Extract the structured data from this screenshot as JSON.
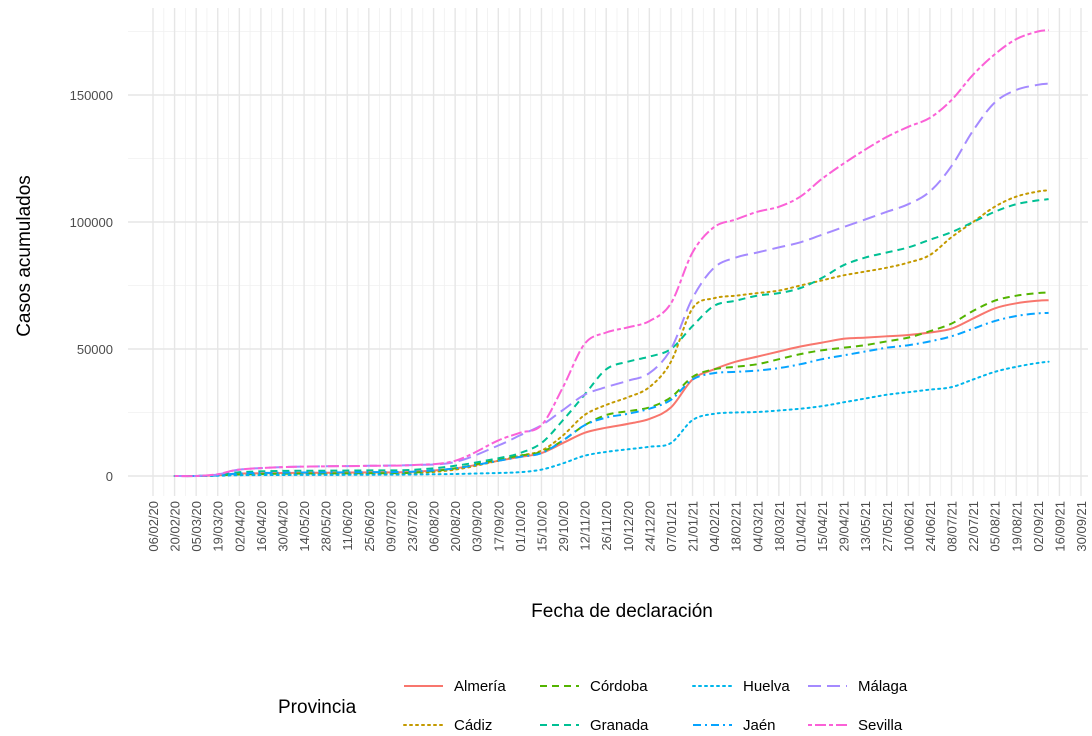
{
  "chart_data": {
    "type": "line",
    "title": "",
    "xlabel": "Fecha de declaración",
    "ylabel": "Casos acumulados",
    "ylim": [
      -5000,
      180000
    ],
    "yticks": [
      0,
      50000,
      100000,
      150000
    ],
    "ytick_labels": [
      "0",
      "50000",
      "100000",
      "150000"
    ],
    "xticks": [
      "06/02/20",
      "20/02/20",
      "05/03/20",
      "19/03/20",
      "02/04/20",
      "16/04/20",
      "30/04/20",
      "14/05/20",
      "28/05/20",
      "11/06/20",
      "25/06/20",
      "09/07/20",
      "23/07/20",
      "06/08/20",
      "20/08/20",
      "03/09/20",
      "17/09/20",
      "01/10/20",
      "15/10/20",
      "29/10/20",
      "12/11/20",
      "26/11/20",
      "10/12/20",
      "24/12/20",
      "07/01/21",
      "21/01/21",
      "04/02/21",
      "18/02/21",
      "04/03/21",
      "18/03/21",
      "01/04/21",
      "15/04/21",
      "29/04/21",
      "13/05/21",
      "27/05/21",
      "10/06/21",
      "24/06/21",
      "08/07/21",
      "22/07/21",
      "05/08/21",
      "19/08/21",
      "02/09/21",
      "16/09/21",
      "30/09/21"
    ],
    "grid": true,
    "legend": {
      "title": "Provincia",
      "placement": "bottom"
    },
    "x_dates": [
      "20/02/20",
      "05/03/20",
      "19/03/20",
      "02/04/20",
      "30/04/20",
      "28/05/20",
      "25/06/20",
      "23/07/20",
      "20/08/20",
      "17/09/20",
      "01/10/20",
      "15/10/20",
      "29/10/20",
      "12/11/20",
      "26/11/20",
      "10/12/20",
      "24/12/20",
      "07/01/21",
      "21/01/21",
      "04/02/21",
      "18/02/21",
      "04/03/21",
      "18/03/21",
      "01/04/21",
      "15/04/21",
      "29/04/21",
      "13/05/21",
      "27/05/21",
      "10/06/21",
      "24/06/21",
      "08/07/21",
      "22/07/21",
      "05/08/21",
      "19/08/21",
      "02/09/21",
      "09/09/21"
    ],
    "series": [
      {
        "name": "Almería",
        "color": "#F8766D",
        "dash": "solid",
        "values": [
          0,
          0,
          300,
          900,
          1200,
          1300,
          1400,
          1600,
          3000,
          6000,
          7500,
          9000,
          13000,
          17000,
          19000,
          20500,
          22500,
          27000,
          38000,
          42000,
          45000,
          47000,
          49000,
          51000,
          52500,
          54000,
          54500,
          55000,
          55500,
          56500,
          58000,
          62000,
          66000,
          68000,
          69000,
          69200
        ]
      },
      {
        "name": "Cádiz",
        "color": "#C49A00",
        "dash": "dotted",
        "values": [
          0,
          0,
          200,
          500,
          700,
          800,
          900,
          1100,
          2500,
          6000,
          8000,
          10000,
          16000,
          24000,
          28000,
          31000,
          35000,
          45000,
          66000,
          70000,
          71000,
          72000,
          73000,
          75000,
          77000,
          79000,
          80500,
          82000,
          84000,
          87000,
          94000,
          100000,
          106000,
          110000,
          112000,
          112500
        ]
      },
      {
        "name": "Córdoba",
        "color": "#53B400",
        "dash": "dashed",
        "values": [
          0,
          0,
          200,
          600,
          900,
          1000,
          1100,
          1300,
          3000,
          6500,
          8000,
          9500,
          14000,
          20000,
          24000,
          25500,
          27000,
          31000,
          39000,
          42000,
          43000,
          44000,
          46000,
          48000,
          49500,
          50500,
          51500,
          53000,
          54500,
          57000,
          60000,
          65000,
          69000,
          71000,
          72000,
          72200
        ]
      },
      {
        "name": "Granada",
        "color": "#00C094",
        "dash": "dashed",
        "values": [
          0,
          0,
          400,
          1500,
          2000,
          2100,
          2200,
          2400,
          4000,
          7000,
          9000,
          13000,
          22000,
          32000,
          42000,
          45000,
          47000,
          50000,
          59000,
          67000,
          69000,
          71000,
          72000,
          74000,
          78000,
          83000,
          86000,
          88000,
          90000,
          93000,
          96000,
          100000,
          104000,
          107000,
          108500,
          109000
        ]
      },
      {
        "name": "Huelva",
        "color": "#00B6EB",
        "dash": "dotted",
        "values": [
          0,
          0,
          100,
          300,
          400,
          450,
          500,
          600,
          800,
          1200,
          1500,
          2500,
          5000,
          8000,
          9500,
          10500,
          11500,
          13000,
          22000,
          24500,
          25000,
          25200,
          25800,
          26500,
          27500,
          29000,
          30500,
          32000,
          33000,
          34000,
          35000,
          38000,
          41000,
          43000,
          44500,
          45000
        ]
      },
      {
        "name": "Jaén",
        "color": "#06A4FF",
        "dash": "dashdot",
        "values": [
          0,
          0,
          300,
          1000,
          1300,
          1400,
          1500,
          1700,
          3000,
          6000,
          7500,
          9000,
          14000,
          20000,
          23000,
          24500,
          26500,
          30000,
          38000,
          40500,
          41000,
          41500,
          42500,
          44000,
          46000,
          47500,
          49000,
          50500,
          51500,
          53000,
          55000,
          58000,
          61000,
          63000,
          64000,
          64200
        ]
      },
      {
        "name": "Málaga",
        "color": "#A58AFF",
        "dash": "longdash",
        "values": [
          0,
          0,
          600,
          2500,
          3500,
          3800,
          4000,
          4300,
          5500,
          12000,
          16000,
          20000,
          26000,
          32000,
          35000,
          37500,
          40500,
          50000,
          70000,
          82000,
          86000,
          88000,
          90000,
          92000,
          95000,
          98000,
          101000,
          104000,
          107000,
          112000,
          122000,
          136000,
          147000,
          152000,
          154000,
          154500
        ]
      },
      {
        "name": "Sevilla",
        "color": "#FB61D7",
        "dash": "twodash",
        "values": [
          0,
          0,
          700,
          2500,
          3500,
          3800,
          4000,
          4300,
          6000,
          14000,
          17000,
          20000,
          35000,
          52000,
          56500,
          58500,
          61000,
          68000,
          88000,
          98000,
          101000,
          104000,
          106000,
          110000,
          117000,
          123000,
          128500,
          133500,
          137500,
          141000,
          148000,
          158000,
          166000,
          172000,
          175000,
          175500
        ]
      }
    ]
  }
}
